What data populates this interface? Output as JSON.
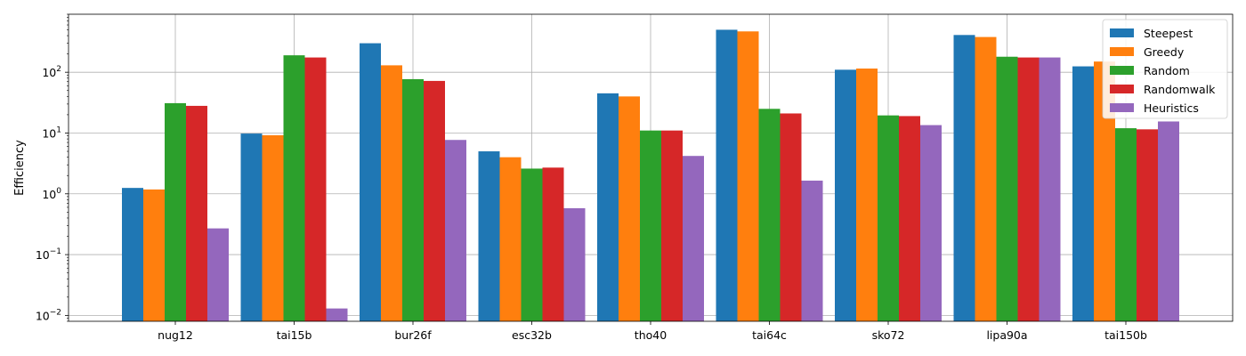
{
  "chart_data": {
    "type": "bar",
    "title": "",
    "xlabel": "",
    "ylabel": "Efficiency",
    "yscale": "log",
    "ylim": [
      0.008,
      900
    ],
    "grid": true,
    "legend_position": "top-right",
    "categories": [
      "nug12",
      "tai15b",
      "bur26f",
      "esc32b",
      "tho40",
      "tai64c",
      "sko72",
      "lipa90a",
      "tai150b"
    ],
    "y_ticks": [
      {
        "value": 0.01,
        "base": "10",
        "exp": "−2"
      },
      {
        "value": 0.1,
        "base": "10",
        "exp": "−1"
      },
      {
        "value": 1,
        "base": "10",
        "exp": "0"
      },
      {
        "value": 10,
        "base": "10",
        "exp": "1"
      },
      {
        "value": 100,
        "base": "10",
        "exp": "2"
      }
    ],
    "series": [
      {
        "name": "Steepest",
        "color": "#1f77b4",
        "values": [
          1.25,
          9.8,
          300,
          5.0,
          45,
          500,
          110,
          410,
          125
        ]
      },
      {
        "name": "Greedy",
        "color": "#ff7f0e",
        "values": [
          1.18,
          9.2,
          130,
          4.0,
          40,
          470,
          115,
          380,
          150
        ]
      },
      {
        "name": "Random",
        "color": "#2ca02c",
        "values": [
          31,
          190,
          77,
          2.6,
          11,
          25,
          19.5,
          180,
          12
        ]
      },
      {
        "name": "Randomwalk",
        "color": "#d62728",
        "values": [
          28,
          175,
          72,
          2.7,
          11,
          21,
          19,
          175,
          11.5
        ]
      },
      {
        "name": "Heuristics",
        "color": "#9467bd",
        "values": [
          0.27,
          0.013,
          7.7,
          0.58,
          4.2,
          1.65,
          13.5,
          175,
          15.5
        ]
      }
    ]
  }
}
